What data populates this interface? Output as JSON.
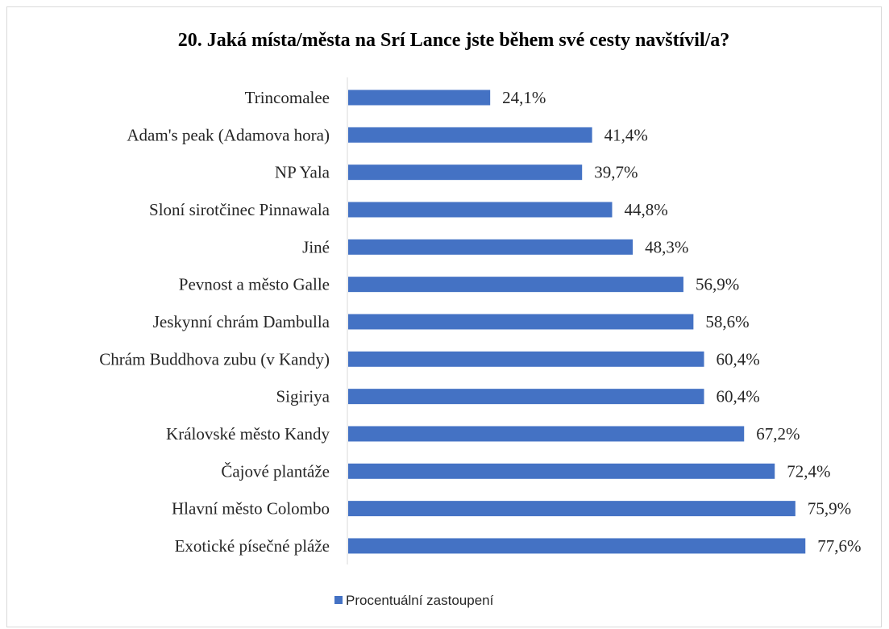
{
  "chart_data": {
    "type": "bar",
    "orientation": "horizontal",
    "title": "20. Jaká místa/města na Srí Lance jste během své cesty navštívil/a?",
    "categories": [
      "Trincomalee",
      "Adam's peak (Adamova hora)",
      "NP Yala",
      "Sloní sirotčinec Pinnawala",
      "Jiné",
      "Pevnost a město Galle",
      "Jeskynní chrám Dambulla",
      "Chrám Buddhova zubu (v Kandy)",
      "Sigiriya",
      "Královské město Kandy",
      "Čajové plantáže",
      "Hlavní město Colombo",
      "Exotické písečné pláže"
    ],
    "series": [
      {
        "name": "Procentuální zastoupení",
        "color": "#4472c4",
        "values": [
          24.1,
          41.4,
          39.7,
          44.8,
          48.3,
          56.9,
          58.6,
          60.4,
          60.4,
          67.2,
          72.4,
          75.9,
          77.6
        ],
        "labels": [
          "24,1%",
          "41,4%",
          "39,7%",
          "44,8%",
          "48,3%",
          "56,9%",
          "58,6%",
          "60,4%",
          "60,4%",
          "67,2%",
          "72,4%",
          "75,9%",
          "77,6%"
        ]
      }
    ],
    "xlim": [
      0,
      100
    ],
    "grid": false,
    "legend_position": "bottom"
  }
}
